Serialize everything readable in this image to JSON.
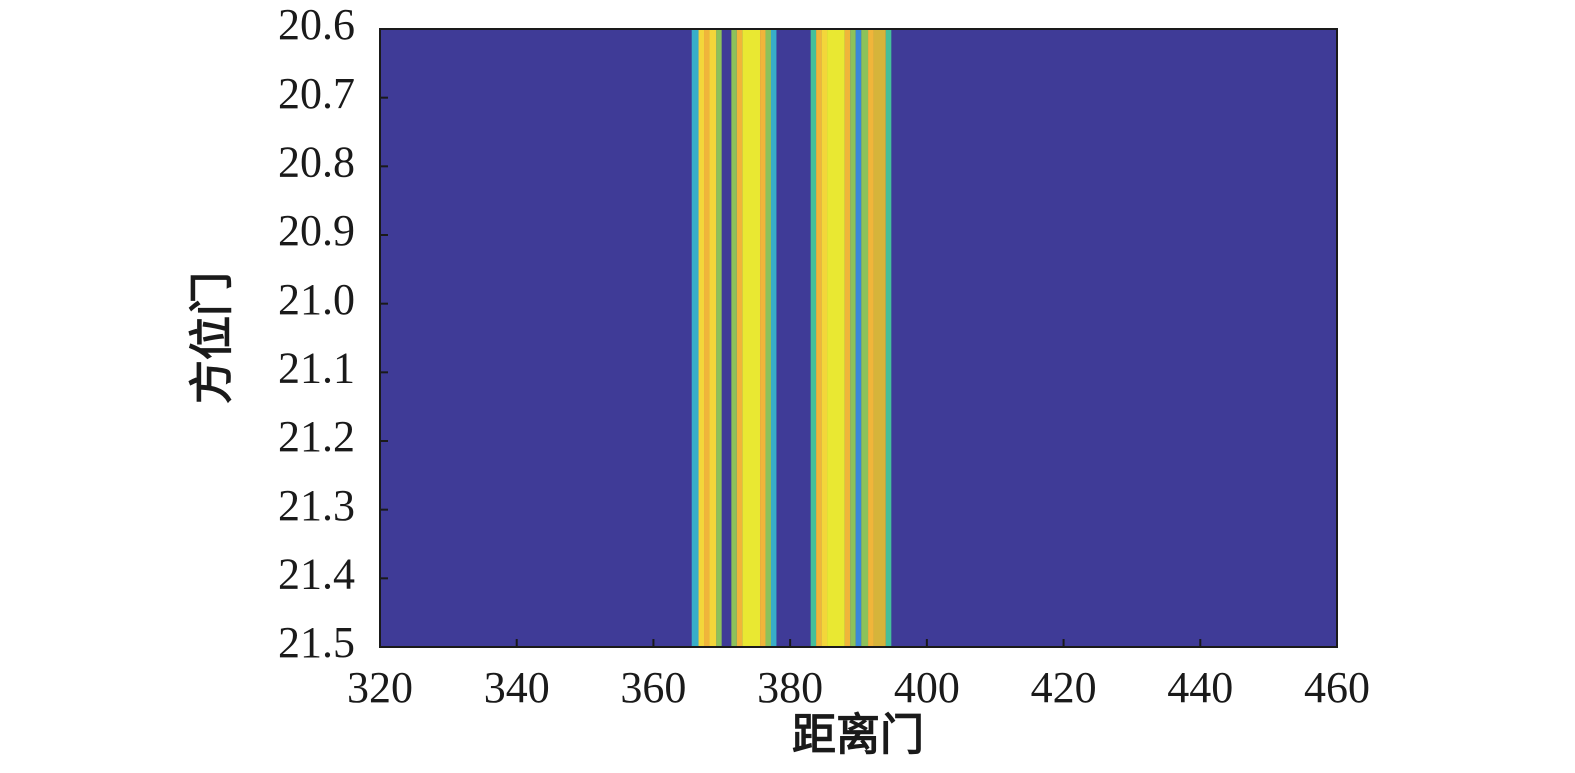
{
  "chart_data": {
    "type": "heatmap",
    "xlabel": "距离门",
    "ylabel": "方位门",
    "xlim": [
      320,
      460
    ],
    "ylim": [
      21.5,
      20.6
    ],
    "xticks": [
      320,
      340,
      360,
      380,
      400,
      420,
      440,
      460
    ],
    "yticks": [
      20.6,
      20.7,
      20.8,
      20.9,
      {
        "value": 21.0,
        "label": "21.0"
      },
      21.1,
      21.2,
      21.3,
      21.4,
      21.5
    ],
    "clim": [
      0,
      1
    ],
    "colormap": [
      "#3f3b97",
      "#3a5fcd",
      "#3a88d8",
      "#38aec8",
      "#45bf9a",
      "#8cc25a",
      "#d6b43a",
      "#f0b53a",
      "#f3d63a",
      "#e9e832"
    ],
    "x_edges": [
      365.6,
      366.6,
      367.4,
      368.2,
      369.2,
      370.0,
      371.4,
      372.2,
      373.0,
      375.6,
      376.4,
      377.2,
      378.0,
      383.0,
      383.8,
      384.6,
      385.4,
      388.0,
      388.8,
      389.6,
      390.4,
      391.4,
      392.2,
      394.0,
      394.8
    ],
    "values": [
      0.3,
      0.9,
      0.75,
      0.9,
      0.5,
      0.05,
      0.5,
      0.8,
      0.95,
      0.8,
      0.5,
      0.3,
      0,
      0.4,
      0.75,
      0.85,
      0.95,
      0.8,
      0.5,
      0.25,
      0.55,
      0.8,
      0.7,
      0.45
    ]
  }
}
